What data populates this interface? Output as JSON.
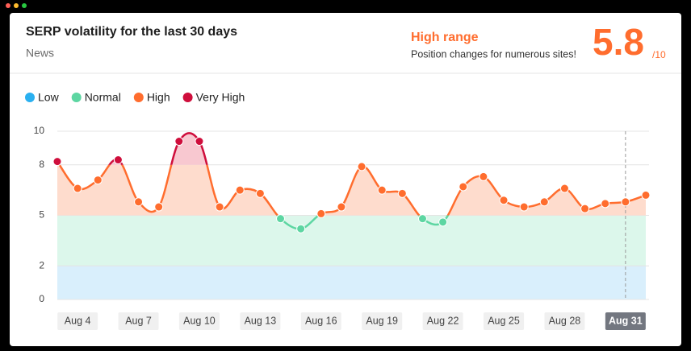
{
  "header": {
    "title": "SERP volatility for the last 30 days",
    "subtitle": "News",
    "range_label": "High range",
    "range_note": "Position changes for numerous sites!",
    "score": 5.8,
    "score_max_label": "/10"
  },
  "chart_data": {
    "type": "line",
    "levels": [
      {
        "name": "Low",
        "color": "#2ab0f0",
        "band_color": "#d9effc",
        "range": [
          0,
          2
        ]
      },
      {
        "name": "Normal",
        "color": "#5dd6a2",
        "band_color": "#dcf7eb",
        "range": [
          2,
          5
        ]
      },
      {
        "name": "High",
        "color": "#ff6d2e",
        "band_color": "#fedccd",
        "range": [
          5,
          8
        ]
      },
      {
        "name": "Very High",
        "color": "#cf0e3c",
        "band_color": "#f8c8d0",
        "range": [
          8,
          10
        ]
      }
    ],
    "categories": [
      null,
      "Aug 4",
      null,
      null,
      "Aug 7",
      null,
      null,
      "Aug 10",
      null,
      null,
      "Aug 13",
      null,
      null,
      "Aug 16",
      null,
      null,
      "Aug 19",
      null,
      null,
      "Aug 22",
      null,
      null,
      "Aug 25",
      null,
      null,
      "Aug 28",
      null,
      null,
      "Aug 31",
      null
    ],
    "values": [
      8.2,
      6.6,
      7.1,
      8.3,
      5.8,
      5.5,
      9.4,
      9.4,
      5.5,
      6.5,
      6.3,
      4.8,
      4.2,
      5.1,
      5.5,
      7.9,
      6.5,
      6.3,
      4.8,
      4.6,
      6.7,
      7.3,
      5.9,
      5.5,
      5.8,
      6.6,
      5.4,
      5.7,
      5.8,
      6.2
    ],
    "selected_index": 28,
    "ylim": [
      0,
      10
    ],
    "yticks": [
      0,
      2,
      5,
      8,
      10
    ],
    "grid": true
  }
}
